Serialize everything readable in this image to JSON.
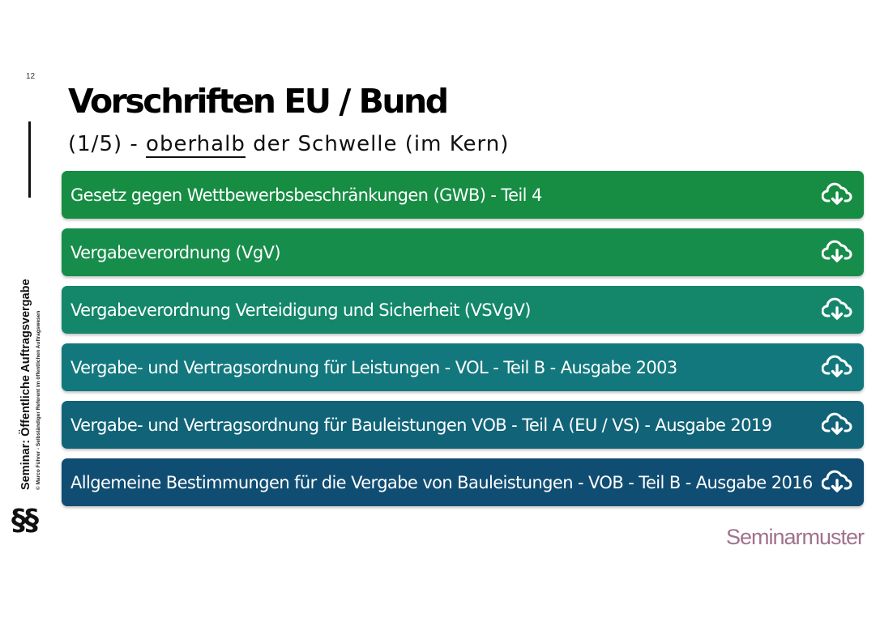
{
  "slide": {
    "number": "12",
    "title": "Vorschriften EU / Bund",
    "subtitle_prefix": "(1/5) - ",
    "subtitle_underlined": "oberhalb",
    "subtitle_suffix": " der Schwelle (im Kern)"
  },
  "sidebar": {
    "title": "Seminar: Öffentliche Auftragsvergabe",
    "author": "© Marco Führer - Selbständiger Referent im öffentlichen Auftragswesen",
    "symbol": "§§"
  },
  "items": [
    {
      "label": "Gesetz gegen Wettbewerbsbeschränkungen (GWB) - Teil 4",
      "color": "#168d43",
      "icon": "cloud-download-icon"
    },
    {
      "label": "Vergabeverordnung (VgV)",
      "color": "#178d4b",
      "icon": "cloud-download-icon"
    },
    {
      "label": "Vergabeverordnung Verteidigung und Sicherheit (VSVgV)",
      "color": "#14876a",
      "icon": "cloud-download-icon"
    },
    {
      "label": "Vergabe- und Vertragsordnung für Leistungen - VOL - Teil B - Ausgabe 2003",
      "color": "#12787d",
      "icon": "cloud-download-icon"
    },
    {
      "label": "Vergabe- und Vertragsordnung für Bauleistungen VOB - Teil A (EU / VS) - Ausgabe 2019",
      "color": "#116478",
      "icon": "cloud-download-icon"
    },
    {
      "label": "Allgemeine Bestimmungen für die Vergabe von Bauleistungen - VOB - Teil B - Ausgabe 2016",
      "color": "#104d72",
      "icon": "cloud-download-icon"
    }
  ],
  "brand": {
    "watermark": "Seminarmuster",
    "color": "#a0728c"
  }
}
